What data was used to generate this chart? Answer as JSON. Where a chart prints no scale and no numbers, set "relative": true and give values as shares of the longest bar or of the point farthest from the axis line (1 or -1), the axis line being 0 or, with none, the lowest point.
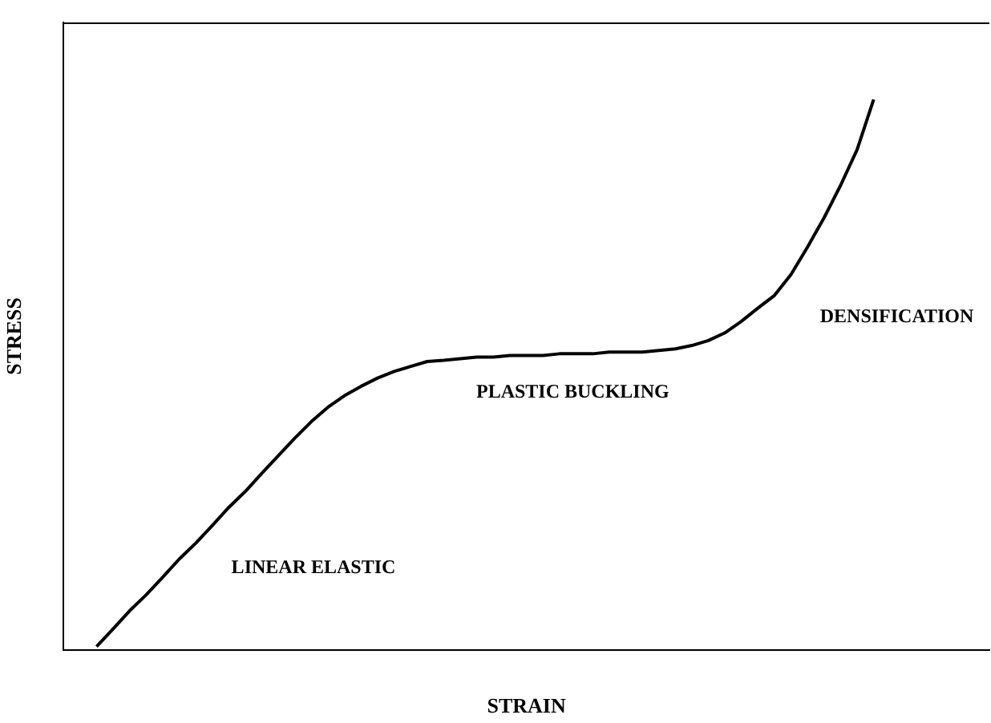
{
  "chart_data": {
    "type": "line",
    "relative": true,
    "xlabel": "STRAIN",
    "ylabel": "STRESS",
    "color": "#000000",
    "marker": "none",
    "line_style": "solid",
    "grid": false,
    "legend": false,
    "categories": [
      null,
      null,
      null,
      null,
      null,
      null,
      null,
      null,
      null,
      null,
      null,
      null,
      null,
      null,
      null,
      null,
      null,
      null,
      null,
      null,
      null,
      null,
      null,
      null,
      null,
      null,
      null,
      null,
      null,
      null,
      null,
      null,
      null,
      null,
      null,
      null,
      null,
      null,
      null,
      null,
      null,
      null,
      null,
      null,
      null,
      null,
      null,
      null,
      null,
      null,
      null,
      null,
      null,
      null,
      null,
      null,
      null
    ],
    "values": [
      null,
      null,
      0.006,
      0.038,
      0.071,
      0.1,
      0.132,
      0.165,
      0.194,
      0.226,
      0.259,
      0.288,
      0.321,
      0.353,
      0.385,
      0.415,
      0.441,
      0.462,
      0.479,
      0.494,
      0.506,
      0.515,
      0.524,
      0.526,
      0.529,
      0.532,
      0.532,
      0.535,
      0.535,
      0.535,
      0.538,
      0.538,
      0.538,
      0.541,
      0.541,
      0.541,
      0.544,
      0.547,
      0.553,
      0.562,
      0.576,
      0.597,
      0.621,
      0.644,
      0.682,
      0.732,
      0.785,
      0.844,
      0.909,
      1,
      null,
      null,
      null,
      null,
      null,
      null,
      null
    ],
    "annotations": [
      "LINEAR ELASTIC",
      "PLASTIC BUCKLING",
      "DENSIFICATION"
    ]
  }
}
